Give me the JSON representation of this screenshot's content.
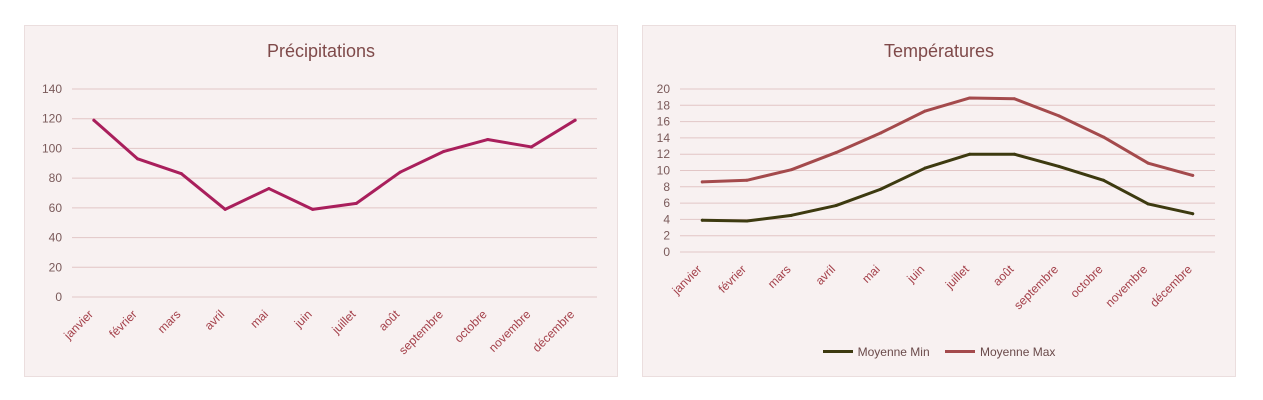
{
  "chart_data": [
    {
      "type": "line",
      "title": "Précipitations",
      "categories": [
        "janvier",
        "février",
        "mars",
        "avril",
        "mai",
        "juin",
        "juillet",
        "août",
        "septembre",
        "octobre",
        "novembre",
        "décembre"
      ],
      "series": [
        {
          "values": [
            119,
            93,
            83,
            59,
            73,
            59,
            63,
            84,
            98,
            106,
            101,
            119
          ],
          "color": "#a91f5c"
        }
      ],
      "ylim": [
        0,
        140
      ],
      "yticks": [
        0,
        20,
        40,
        60,
        80,
        100,
        120,
        140
      ],
      "grid": true,
      "legend": "none"
    },
    {
      "type": "line",
      "title": "Températures",
      "categories": [
        "janvier",
        "février",
        "mars",
        "avril",
        "mai",
        "juin",
        "juillet",
        "août",
        "septembre",
        "octobre",
        "novembre",
        "décembre"
      ],
      "series": [
        {
          "name": "Moyenne Min",
          "values": [
            3.9,
            3.8,
            4.5,
            5.7,
            7.7,
            10.3,
            12.0,
            12.0,
            10.5,
            8.8,
            5.9,
            4.7
          ],
          "color": "#3d3a10"
        },
        {
          "name": "Moyenne Max",
          "values": [
            8.6,
            8.8,
            10.1,
            12.2,
            14.6,
            17.3,
            18.9,
            18.8,
            16.7,
            14.1,
            10.9,
            9.4
          ],
          "color": "#a44a4c"
        }
      ],
      "ylim": [
        0,
        20
      ],
      "yticks": [
        0,
        2,
        4,
        6,
        8,
        10,
        12,
        14,
        16,
        18,
        20
      ],
      "grid": true,
      "legend": "bottom"
    }
  ]
}
